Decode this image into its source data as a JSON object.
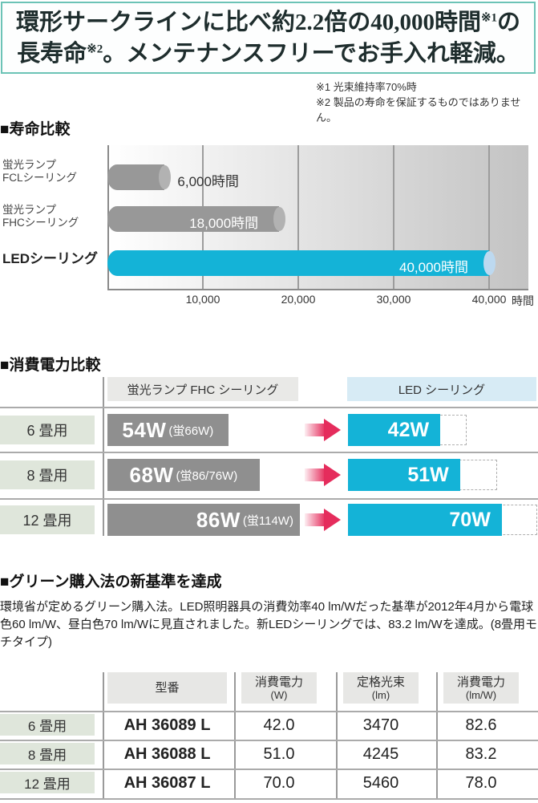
{
  "banner": {
    "line1_pre": "環形サークラインに比べ約2.2倍の40,000時間",
    "line1_sup": "※1",
    "line1_post": "の",
    "line2_pre": "長寿命",
    "line2_sup": "※2",
    "line2_post": "。メンテナンスフリーでお手入れ軽減。"
  },
  "footnotes": [
    "※1 光束維持率70%時",
    "※2 製品の寿命を保証するものではありません。"
  ],
  "sections": {
    "life": {
      "title": "■寿命比較"
    },
    "power": {
      "title": "■消費電力比較"
    },
    "green": {
      "title": "■グリーン購入法の新基準を達成",
      "paragraph": "環境省が定めるグリーン購入法。LED照明器具の消費効率40 lm/Wだった基準が2012年4月から電球色60 lm/W、昼白色70 lm/Wに見直されました。新LEDシーリングでは、83.2 lm/Wを達成。(8畳用モチタイプ)"
    }
  },
  "chart_data": [
    {
      "type": "bar",
      "orientation": "horizontal",
      "title": "寿命比較",
      "categories": [
        [
          "蛍光ランプ",
          "FCLシーリング"
        ],
        [
          "蛍光ランプ",
          "FHCシーリング"
        ],
        [
          "LEDシーリング"
        ]
      ],
      "values": [
        6000,
        18000,
        40000
      ],
      "value_labels": [
        "6,000時間",
        "18,000時間",
        "40,000時間"
      ],
      "x_ticks": [
        10000,
        20000,
        30000,
        40000
      ],
      "x_tick_labels": [
        "10,000",
        "20,000",
        "30,000",
        "40,000"
      ],
      "x_unit": "時間",
      "xlim": [
        0,
        44000
      ],
      "grid": true,
      "bar_colors": [
        "#989898",
        "#989898",
        "#14b3d7"
      ],
      "cap_colors": [
        "#b2b2b2",
        "#b2b2b2",
        "#bdd9f0"
      ]
    },
    {
      "type": "bar-comparison",
      "title": "消費電力比較",
      "column_headers": [
        "蛍光ランプ FHC シーリング",
        "LED シーリング"
      ],
      "rows": [
        {
          "label": "6 畳用",
          "fhc_label": "54W",
          "fhc_note": "(蛍66W)",
          "fhc_watts": 54,
          "led_label": "42W",
          "led_watts": 42
        },
        {
          "label": "8 畳用",
          "fhc_label": "68W",
          "fhc_note": "(蛍86/76W)",
          "fhc_watts": 68,
          "led_label": "51W",
          "led_watts": 51
        },
        {
          "label": "12 畳用",
          "fhc_label": "86W",
          "fhc_note": "(蛍114W)",
          "fhc_watts": 86,
          "led_label": "70W",
          "led_watts": 70
        }
      ]
    }
  ],
  "green_table": {
    "headers": [
      {
        "main": "型番",
        "unit": ""
      },
      {
        "main": "消費電力",
        "unit": "(W)"
      },
      {
        "main": "定格光束",
        "unit": "(lm)"
      },
      {
        "main": "消費電力",
        "unit": "(lm/W)"
      }
    ],
    "rows": [
      {
        "label": "6 畳用",
        "model": "AH 36089 L",
        "power_w": "42.0",
        "flux_lm": "3470",
        "efficiency": "82.6"
      },
      {
        "label": "8 畳用",
        "model": "AH 36088 L",
        "power_w": "51.0",
        "flux_lm": "4245",
        "efficiency": "83.2"
      },
      {
        "label": "12 畳用",
        "model": "AH 36087 L",
        "power_w": "70.0",
        "flux_lm": "5460",
        "efficiency": "78.0"
      }
    ]
  },
  "colors": {
    "accent_cyan": "#14b3d7",
    "bar_gray": "#989898",
    "arrow_red": "#e52c5c",
    "banner_border": "#6cc3b6",
    "row_label_green": "#dfe6db",
    "header_blue": "#d7ebf5",
    "header_gray": "#e9e9e7"
  }
}
